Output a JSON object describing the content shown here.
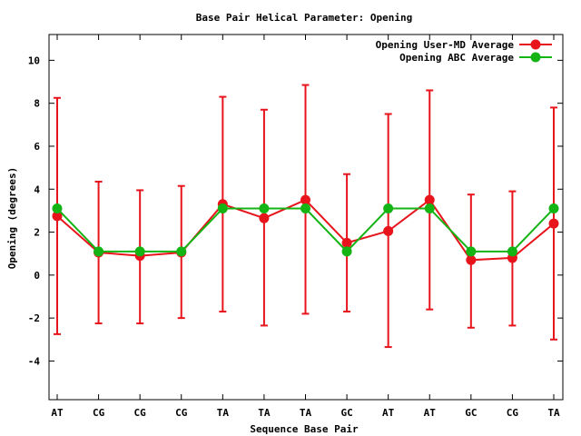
{
  "chart_data": {
    "type": "line",
    "title": "Base Pair Helical Parameter: Opening",
    "xlabel": "Sequence Base Pair",
    "ylabel": "Opening (degrees)",
    "categories": [
      "AT",
      "CG",
      "CG",
      "CG",
      "TA",
      "TA",
      "TA",
      "GC",
      "AT",
      "AT",
      "GC",
      "CG",
      "TA"
    ],
    "ylim": [
      -5.8,
      11.2
    ],
    "yticks": [
      -4,
      -2,
      0,
      2,
      4,
      6,
      8,
      10
    ],
    "ytick_labels": [
      "-4",
      "-2",
      "0",
      "2",
      "4",
      "6",
      "8",
      "10"
    ],
    "grid": false,
    "legend_position": "top-right",
    "series": [
      {
        "name": "Opening User-MD Average",
        "color": "#e8141c",
        "values": [
          2.75,
          1.05,
          0.9,
          1.05,
          3.3,
          2.65,
          3.5,
          1.5,
          2.05,
          3.5,
          0.7,
          0.8,
          2.4
        ],
        "error_low": [
          -2.75,
          -2.25,
          -2.25,
          -2.0,
          -1.7,
          -2.35,
          -1.8,
          -1.7,
          -3.35,
          -1.6,
          -2.45,
          -2.35,
          -3.0
        ],
        "error_high": [
          8.25,
          4.35,
          3.95,
          4.15,
          8.3,
          7.7,
          8.85,
          4.7,
          7.5,
          8.6,
          3.75,
          3.9,
          7.8
        ]
      },
      {
        "name": "Opening ABC Average",
        "color": "#14b414",
        "values": [
          3.1,
          1.1,
          1.1,
          1.1,
          3.1,
          3.1,
          3.1,
          1.1,
          3.1,
          3.1,
          1.1,
          1.1,
          3.1
        ]
      }
    ]
  }
}
